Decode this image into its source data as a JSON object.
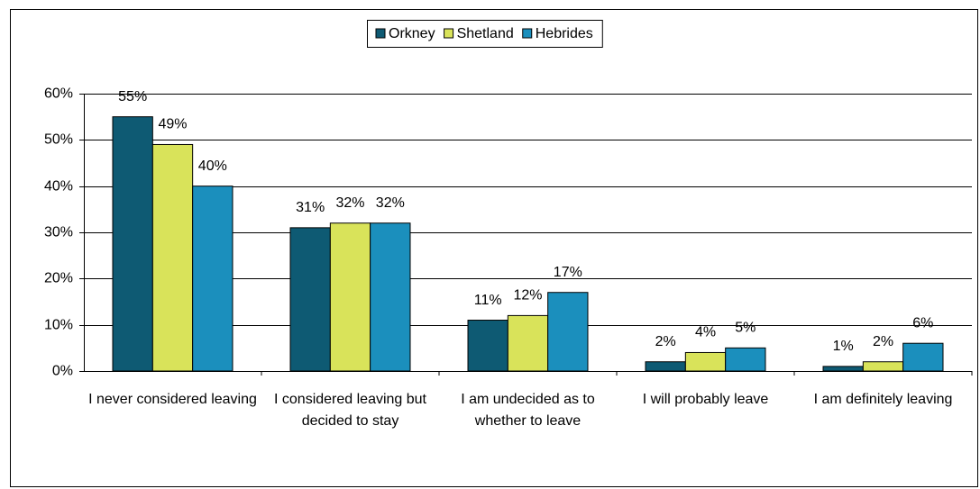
{
  "chart_data": {
    "type": "bar",
    "categories": [
      "I never considered leaving",
      "I considered leaving but decided to stay",
      "I am undecided as to whether to leave",
      "I will probably leave",
      "I am definitely leaving"
    ],
    "series": [
      {
        "name": "Orkney",
        "color": "#0e5a73",
        "values": [
          55,
          31,
          11,
          2,
          1
        ],
        "value_labels": [
          "55%",
          "31%",
          "11%",
          "2%",
          "1%"
        ]
      },
      {
        "name": "Shetland",
        "color": "#d9e35a",
        "values": [
          49,
          32,
          12,
          4,
          2
        ],
        "value_labels": [
          "49%",
          "32%",
          "12%",
          "4%",
          "2%"
        ]
      },
      {
        "name": "Hebrides",
        "color": "#1b8fbd",
        "values": [
          40,
          32,
          17,
          5,
          6
        ],
        "value_labels": [
          "40%",
          "32%",
          "17%",
          "5%",
          "6%"
        ]
      }
    ],
    "ylim": [
      0,
      60
    ],
    "yticks": [
      {
        "value": 0,
        "label": "0%"
      },
      {
        "value": 10,
        "label": "10%"
      },
      {
        "value": 20,
        "label": "20%"
      },
      {
        "value": 30,
        "label": "30%"
      },
      {
        "value": 40,
        "label": "40%"
      },
      {
        "value": 50,
        "label": "50%"
      },
      {
        "value": 60,
        "label": "60%"
      }
    ],
    "grid": true,
    "legend": "top"
  }
}
